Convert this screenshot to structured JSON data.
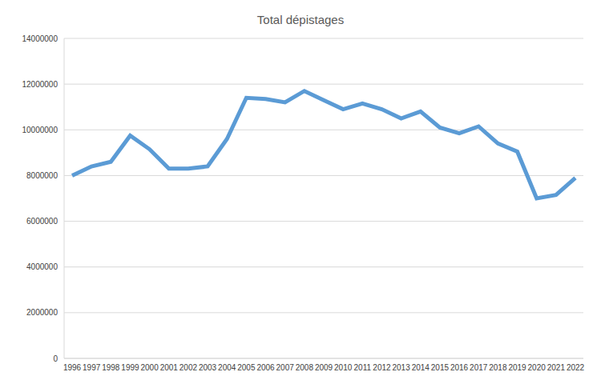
{
  "chart_data": {
    "type": "line",
    "title": "Total dépistages",
    "categories": [
      "1996",
      "1997",
      "1998",
      "1999",
      "2000",
      "2001",
      "2002",
      "2003",
      "2004",
      "2005",
      "2006",
      "2007",
      "2008",
      "2009",
      "2010",
      "2011",
      "2012",
      "2013",
      "2014",
      "2015",
      "2016",
      "2017",
      "2018",
      "2019",
      "2020",
      "2021",
      "2022"
    ],
    "values": [
      8000000,
      8400000,
      8600000,
      9750000,
      9150000,
      8300000,
      8300000,
      8400000,
      9600000,
      11400000,
      11350000,
      11200000,
      11700000,
      11300000,
      10900000,
      11150000,
      10900000,
      10500000,
      10800000,
      10100000,
      9850000,
      10150000,
      9400000,
      9050000,
      7000000,
      7150000,
      7900000
    ],
    "color": "#5b9bd5",
    "ylim": [
      0,
      14000000
    ],
    "yticks": [
      0,
      2000000,
      4000000,
      6000000,
      8000000,
      10000000,
      12000000,
      14000000
    ],
    "grid": true
  }
}
